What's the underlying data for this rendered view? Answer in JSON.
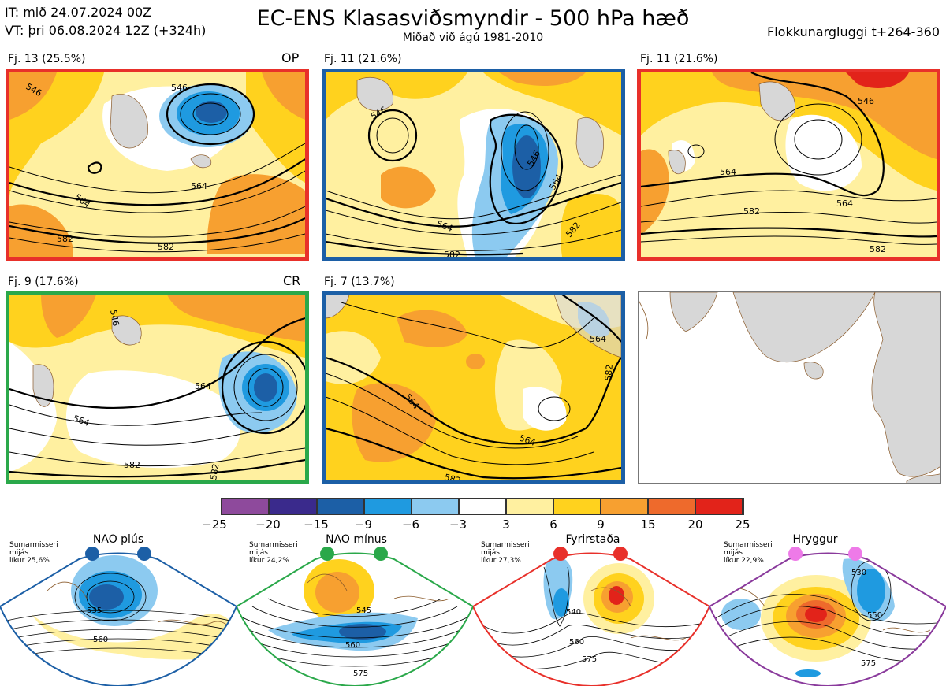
{
  "header": {
    "it_line": "IT: mið 24.07.2024 00Z",
    "vt_line": "VT: þri 06.08.2024 12Z  (+324h)",
    "title": "EC-ENS Klasasviðsmyndir - 500 hPa hæð",
    "subtitle": "Miðað við ágú 1981-2010",
    "window": "Flokkunargluggi t+264-360"
  },
  "colors": {
    "red": "#e8302a",
    "blue": "#1c5fa6",
    "green": "#2aa84a",
    "purple": "#8a3a9c"
  },
  "panels": [
    {
      "label": "Fj. 13 (25.5%)",
      "tag": "OP",
      "frame": "red",
      "contours": [
        "546",
        "564",
        "582",
        "564",
        "582",
        "546"
      ]
    },
    {
      "label": "Fj. 11 (21.6%)",
      "tag": "",
      "frame": "blue",
      "contours": [
        "546",
        "564",
        "582",
        "546",
        "564",
        "582"
      ]
    },
    {
      "label": "Fj. 11 (21.6%)",
      "tag": "",
      "frame": "red",
      "contours": [
        "546",
        "564",
        "582",
        "564",
        "582"
      ]
    },
    {
      "label": "Fj. 9 (17.6%)",
      "tag": "CR",
      "frame": "green",
      "contours": [
        "546",
        "564",
        "564",
        "582",
        "582"
      ]
    },
    {
      "label": "Fj. 7 (13.7%)",
      "tag": "",
      "frame": "blue",
      "contours": [
        "564",
        "564",
        "582",
        "582",
        "564"
      ]
    }
  ],
  "colorbar": {
    "colors": [
      "#8e4a9c",
      "#3a2a8c",
      "#1c5fa6",
      "#1f9ae0",
      "#8ccaf0",
      "#ffffff",
      "#fff0a0",
      "#ffd21e",
      "#f7a030",
      "#ee6a2c",
      "#e2231a",
      "#b01016"
    ],
    "ticks": [
      "−25",
      "−20",
      "−15",
      "−9",
      "−6",
      "−3",
      "3",
      "6",
      "9",
      "15",
      "20",
      "25"
    ]
  },
  "regimes": [
    {
      "name": "NAO plús",
      "note": [
        "Sumarmisseri",
        "mijás",
        "líkur 25,6%"
      ],
      "dot": "blue",
      "frame": "blue",
      "contours": [
        "535",
        "560"
      ]
    },
    {
      "name": "NAO mínus",
      "note": [
        "Sumarmisseri",
        "mijás",
        "líkur 24,2%"
      ],
      "dot": "green",
      "frame": "green",
      "contours": [
        "545",
        "560",
        "575"
      ]
    },
    {
      "name": "Fyrirstaða",
      "note": [
        "Sumarmisseri",
        "mijás",
        "líkur 27,3%"
      ],
      "dot": "red",
      "frame": "red",
      "contours": [
        "540",
        "560",
        "575"
      ]
    },
    {
      "name": "Hryggur",
      "note": [
        "Sumarmisseri",
        "mijás",
        "líkur 22,9%"
      ],
      "dot": "pink",
      "frame": "purple",
      "contours": [
        "530",
        "550",
        "575"
      ]
    }
  ]
}
